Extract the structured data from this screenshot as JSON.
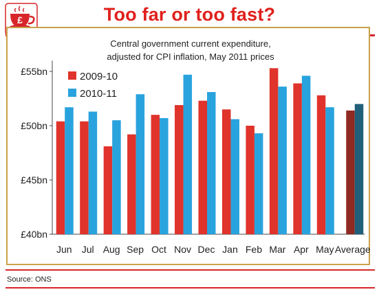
{
  "header": {
    "title": "Too far or too fast?",
    "logo_icon": "teacup-pound-icon"
  },
  "footer": {
    "source": "Source: ONS"
  },
  "colors": {
    "accent": "#d7252a",
    "frame": "#c9a14a",
    "series_2009": "#e0332b",
    "series_2010": "#29a3dd",
    "average_2009": "#8f2a22",
    "average_2010": "#1f5f7a"
  },
  "chart_data": {
    "type": "bar",
    "title": "Central government current expenditure,",
    "subtitle": "adjusted for CPI inflation, May 2011 prices",
    "categories": [
      "Jun",
      "Jul",
      "Aug",
      "Sep",
      "Oct",
      "Nov",
      "Dec",
      "Jan",
      "Feb",
      "Mar",
      "Apr",
      "May",
      "Average"
    ],
    "series": [
      {
        "name": "2009-10",
        "values": [
          50.4,
          50.4,
          48.1,
          49.2,
          51.0,
          51.9,
          52.3,
          51.5,
          50.0,
          55.3,
          53.9,
          52.8,
          51.4
        ]
      },
      {
        "name": "2010-11",
        "values": [
          51.7,
          51.3,
          50.5,
          52.9,
          50.7,
          54.7,
          53.1,
          50.6,
          49.3,
          53.6,
          54.6,
          51.7,
          52.0
        ]
      }
    ],
    "ylim": [
      40,
      56
    ],
    "yticks": [
      {
        "value": 40,
        "label": "£40bn"
      },
      {
        "value": 45,
        "label": "£45bn"
      },
      {
        "value": 50,
        "label": "£50bn"
      },
      {
        "value": 55,
        "label": "£55bn"
      }
    ],
    "legend_position": "top-left",
    "grid": false
  }
}
